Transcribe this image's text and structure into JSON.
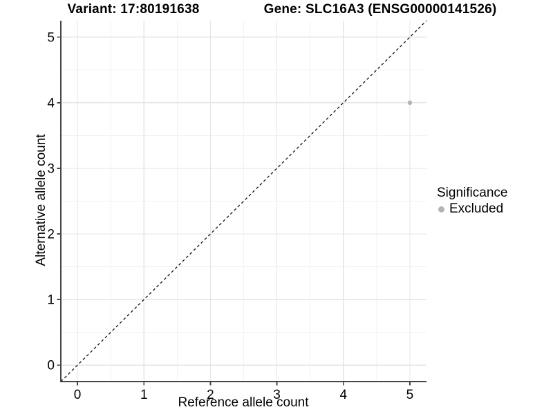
{
  "colors": {
    "background": "#ffffff",
    "grid_major": "#e4e4e4",
    "grid_minor": "#f2f2f2",
    "axis_line": "#464646",
    "tick_mark": "#464646",
    "text": "#000000",
    "point": "#b4b4b4",
    "reference_line": "#111111"
  },
  "chart_data": {
    "type": "scatter",
    "titles": {
      "left": "Variant: 17:80191638",
      "right": "Gene: SLC16A3 (ENSG00000141526)"
    },
    "xlabel": "Reference allele count",
    "ylabel": "Alternative allele count",
    "x_ticks": [
      0,
      1,
      2,
      3,
      4,
      5
    ],
    "y_ticks": [
      0,
      1,
      2,
      3,
      4,
      5
    ],
    "x_tick_labels": [
      "0",
      "1",
      "2",
      "3",
      "4",
      "5"
    ],
    "y_tick_labels": [
      "0",
      "1",
      "2",
      "3",
      "4",
      "5"
    ],
    "xlim": [
      -0.25,
      5.25
    ],
    "ylim": [
      -0.25,
      5.25
    ],
    "grid": {
      "major": true,
      "minor": true
    },
    "reference_line": {
      "equation": "y = x",
      "style": "dashed"
    },
    "series": [
      {
        "name": "Excluded",
        "color": "#b4b4b4",
        "points": [
          {
            "x": 5,
            "y": 4
          }
        ]
      }
    ],
    "legend": {
      "title": "Significance",
      "position": "right",
      "entries": [
        {
          "label": "Excluded",
          "color": "#b4b4b4"
        }
      ]
    }
  }
}
